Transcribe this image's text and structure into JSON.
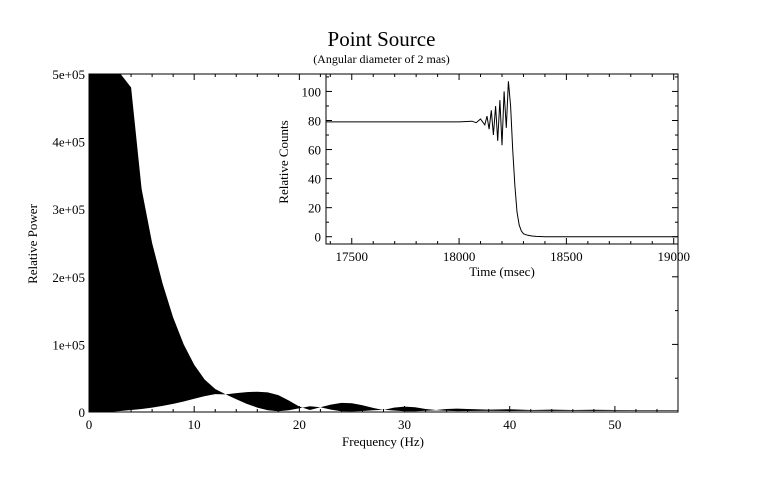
{
  "chart_data": [
    {
      "type": "area",
      "title": "Point Source",
      "subtitle": "(Angular diameter of 2 mas)",
      "xlabel": "Frequency (Hz)",
      "ylabel": "Relative Power",
      "xlim": [
        0,
        56
      ],
      "ylim": [
        0,
        500000
      ],
      "xticks": [
        0,
        10,
        20,
        30,
        40,
        50
      ],
      "xtick_labels": [
        "0",
        "10",
        "20",
        "30",
        "40",
        "50"
      ],
      "yticks": [
        0,
        100000,
        200000,
        300000,
        400000,
        500000
      ],
      "ytick_labels": [
        "0",
        "1e+05",
        "2e+05",
        "3e+05",
        "4e+05",
        "5e+05"
      ],
      "grid": false,
      "legend": "none",
      "description_of_fill": "filled black power spectrum band (envelope of rapid oscillation)",
      "upper_envelope": {
        "x": [
          0,
          1,
          2,
          3,
          4,
          5,
          6,
          7,
          8,
          9,
          10,
          11,
          12,
          13,
          14,
          15,
          16,
          17,
          18,
          19,
          20,
          21,
          22,
          23,
          24,
          25,
          26,
          27,
          28,
          29,
          30,
          31,
          32,
          33,
          34,
          35,
          36,
          38,
          40,
          42,
          44,
          46,
          48,
          50,
          52,
          54,
          56
        ],
        "y": [
          500000,
          500000,
          500000,
          500000,
          480000,
          330000,
          250000,
          190000,
          140000,
          100000,
          70000,
          48000,
          34000,
          26000,
          28000,
          29500,
          30000,
          29000,
          25000,
          17000,
          8000,
          3000,
          7000,
          11000,
          13500,
          13000,
          10000,
          6000,
          3000,
          6500,
          8000,
          7000,
          4500,
          3000,
          4500,
          5000,
          4500,
          3500,
          4000,
          3000,
          3500,
          3000,
          3200,
          3000,
          2800,
          2800,
          2800
        ]
      },
      "lower_envelope": {
        "x": [
          0,
          1,
          2,
          3,
          4,
          5,
          6,
          7,
          8,
          9,
          10,
          11,
          12,
          13,
          14,
          15,
          16,
          17,
          18,
          19,
          20,
          21,
          22,
          23,
          24,
          25,
          26,
          27,
          28,
          29,
          30,
          31,
          32,
          33,
          34,
          35,
          36,
          38,
          40,
          42,
          44,
          46,
          48,
          50,
          52,
          54,
          56
        ],
        "y": [
          0,
          0,
          500,
          1500,
          3000,
          4500,
          6500,
          9000,
          12000,
          15500,
          19500,
          23500,
          26500,
          26000,
          19000,
          12000,
          6500,
          2500,
          1000,
          2500,
          5500,
          8500,
          7000,
          3500,
          1200,
          900,
          1500,
          2500,
          3200,
          2200,
          1200,
          1000,
          1800,
          2600,
          1800,
          1400,
          1500,
          1800,
          1500,
          1900,
          1600,
          1800,
          1700,
          1800,
          1900,
          1900,
          1900
        ]
      }
    },
    {
      "type": "line",
      "xlabel": "Time (msec)",
      "ylabel": "Relative Counts",
      "xlim": [
        17380,
        19020
      ],
      "ylim": [
        -5,
        112
      ],
      "xticks": [
        17500,
        18000,
        18500,
        19000
      ],
      "xtick_labels": [
        "17500",
        "18000",
        "18500",
        "19000"
      ],
      "yticks": [
        0,
        20,
        40,
        60,
        80,
        100
      ],
      "ytick_labels": [
        "0",
        "20",
        "40",
        "60",
        "80",
        "100"
      ],
      "grid": false,
      "legend": "none",
      "x": [
        17380,
        17600,
        17800,
        18000,
        18060,
        18080,
        18100,
        18120,
        18130,
        18140,
        18150,
        18160,
        18170,
        18180,
        18190,
        18200,
        18210,
        18220,
        18230,
        18240,
        18250,
        18260,
        18270,
        18280,
        18290,
        18300,
        18320,
        18340,
        18360,
        18400,
        18500,
        18700,
        19020
      ],
      "y": [
        79,
        79,
        79,
        79,
        79.5,
        78.5,
        81,
        77,
        83,
        74,
        87,
        70,
        90,
        66,
        94,
        63,
        100,
        75,
        107,
        90,
        60,
        35,
        17,
        8,
        4,
        2,
        1,
        0.5,
        0.2,
        0,
        0,
        0,
        0
      ]
    }
  ]
}
